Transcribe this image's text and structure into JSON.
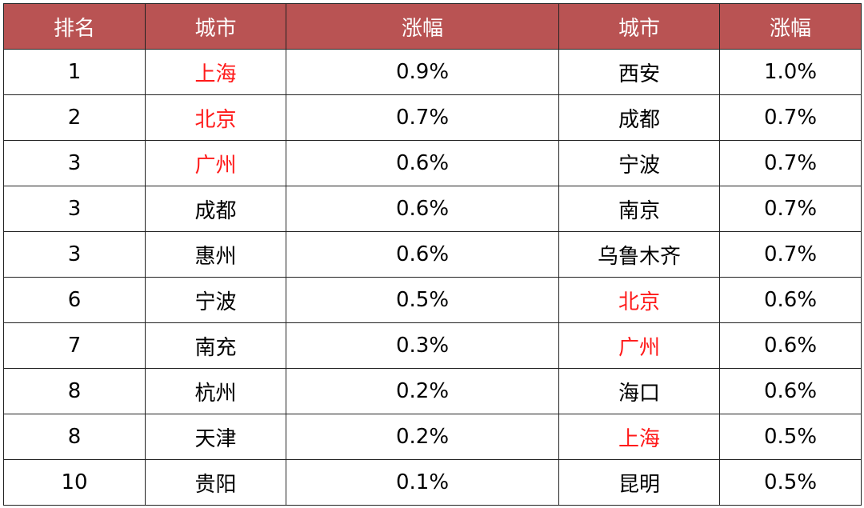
{
  "accent_color": "#b95353",
  "highlight_color": "#ff1a1a",
  "chart_data": {
    "type": "table",
    "headers": [
      "排名",
      "城市",
      "涨幅",
      "城市",
      "涨幅"
    ],
    "rows": [
      {
        "rank": "1",
        "city1": "上海",
        "chg1": "0.9%",
        "city2": "西安",
        "chg2": "1.0%",
        "hl1": true,
        "hl2": false
      },
      {
        "rank": "2",
        "city1": "北京",
        "chg1": "0.7%",
        "city2": "成都",
        "chg2": "0.7%",
        "hl1": true,
        "hl2": false
      },
      {
        "rank": "3",
        "city1": "广州",
        "chg1": "0.6%",
        "city2": "宁波",
        "chg2": "0.7%",
        "hl1": true,
        "hl2": false
      },
      {
        "rank": "3",
        "city1": "成都",
        "chg1": "0.6%",
        "city2": "南京",
        "chg2": "0.7%",
        "hl1": false,
        "hl2": false
      },
      {
        "rank": "3",
        "city1": "惠州",
        "chg1": "0.6%",
        "city2": "乌鲁木齐",
        "chg2": "0.7%",
        "hl1": false,
        "hl2": false
      },
      {
        "rank": "6",
        "city1": "宁波",
        "chg1": "0.5%",
        "city2": "北京",
        "chg2": "0.6%",
        "hl1": false,
        "hl2": true
      },
      {
        "rank": "7",
        "city1": "南充",
        "chg1": "0.3%",
        "city2": "广州",
        "chg2": "0.6%",
        "hl1": false,
        "hl2": true
      },
      {
        "rank": "8",
        "city1": "杭州",
        "chg1": "0.2%",
        "city2": "海口",
        "chg2": "0.6%",
        "hl1": false,
        "hl2": false
      },
      {
        "rank": "8",
        "city1": "天津",
        "chg1": "0.2%",
        "city2": "上海",
        "chg2": "0.5%",
        "hl1": false,
        "hl2": true
      },
      {
        "rank": "10",
        "city1": "贵阳",
        "chg1": "0.1%",
        "city2": "昆明",
        "chg2": "0.5%",
        "hl1": false,
        "hl2": false
      }
    ]
  }
}
